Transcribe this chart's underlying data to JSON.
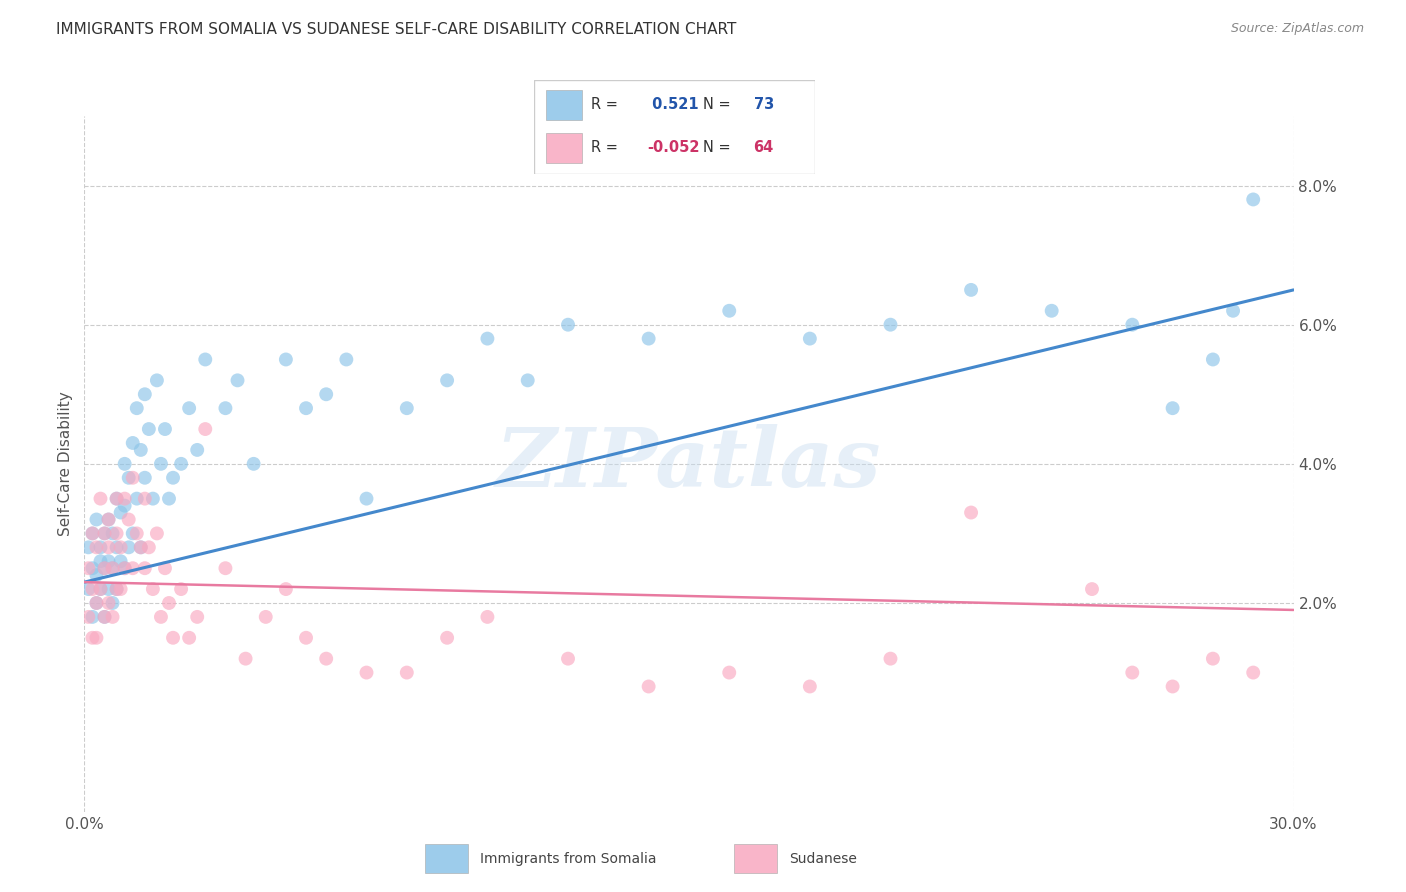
{
  "title": "IMMIGRANTS FROM SOMALIA VS SUDANESE SELF-CARE DISABILITY CORRELATION CHART",
  "source": "Source: ZipAtlas.com",
  "ylabel": "Self-Care Disability",
  "xlim": [
    0.0,
    0.3
  ],
  "ylim": [
    -0.01,
    0.09
  ],
  "ytick_vals": [
    0.02,
    0.04,
    0.06,
    0.08
  ],
  "ytick_labels": [
    "2.0%",
    "4.0%",
    "6.0%",
    "8.0%"
  ],
  "xtick_vals": [
    0.0,
    0.05,
    0.1,
    0.15,
    0.2,
    0.25,
    0.3
  ],
  "xtick_labels": [
    "0.0%",
    "",
    "",
    "",
    "",
    "",
    "30.0%"
  ],
  "r_somalia": 0.521,
  "n_somalia": 73,
  "r_sudanese": -0.052,
  "n_sudanese": 64,
  "blue_color": "#8cc4e8",
  "pink_color": "#f9a8c0",
  "line_blue": "#4488cc",
  "line_pink": "#e87aa0",
  "watermark": "ZIPatlas",
  "somalia_x": [
    0.001,
    0.001,
    0.002,
    0.002,
    0.002,
    0.003,
    0.003,
    0.003,
    0.004,
    0.004,
    0.004,
    0.005,
    0.005,
    0.005,
    0.006,
    0.006,
    0.006,
    0.007,
    0.007,
    0.007,
    0.008,
    0.008,
    0.008,
    0.009,
    0.009,
    0.01,
    0.01,
    0.01,
    0.011,
    0.011,
    0.012,
    0.012,
    0.013,
    0.013,
    0.014,
    0.014,
    0.015,
    0.015,
    0.016,
    0.017,
    0.018,
    0.019,
    0.02,
    0.021,
    0.022,
    0.024,
    0.026,
    0.028,
    0.03,
    0.035,
    0.038,
    0.042,
    0.05,
    0.055,
    0.06,
    0.065,
    0.07,
    0.08,
    0.09,
    0.1,
    0.11,
    0.12,
    0.14,
    0.16,
    0.18,
    0.2,
    0.22,
    0.24,
    0.26,
    0.27,
    0.28,
    0.285,
    0.29
  ],
  "somalia_y": [
    0.028,
    0.022,
    0.025,
    0.03,
    0.018,
    0.024,
    0.032,
    0.02,
    0.026,
    0.028,
    0.022,
    0.03,
    0.025,
    0.018,
    0.032,
    0.026,
    0.022,
    0.03,
    0.025,
    0.02,
    0.035,
    0.028,
    0.022,
    0.033,
    0.026,
    0.04,
    0.034,
    0.025,
    0.038,
    0.028,
    0.043,
    0.03,
    0.048,
    0.035,
    0.042,
    0.028,
    0.05,
    0.038,
    0.045,
    0.035,
    0.052,
    0.04,
    0.045,
    0.035,
    0.038,
    0.04,
    0.048,
    0.042,
    0.055,
    0.048,
    0.052,
    0.04,
    0.055,
    0.048,
    0.05,
    0.055,
    0.035,
    0.048,
    0.052,
    0.058,
    0.052,
    0.06,
    0.058,
    0.062,
    0.058,
    0.06,
    0.065,
    0.062,
    0.06,
    0.048,
    0.055,
    0.062,
    0.078
  ],
  "sudanese_x": [
    0.001,
    0.001,
    0.002,
    0.002,
    0.002,
    0.003,
    0.003,
    0.003,
    0.004,
    0.004,
    0.005,
    0.005,
    0.005,
    0.006,
    0.006,
    0.006,
    0.007,
    0.007,
    0.008,
    0.008,
    0.008,
    0.009,
    0.009,
    0.01,
    0.01,
    0.011,
    0.012,
    0.012,
    0.013,
    0.014,
    0.015,
    0.015,
    0.016,
    0.017,
    0.018,
    0.019,
    0.02,
    0.021,
    0.022,
    0.024,
    0.026,
    0.028,
    0.03,
    0.035,
    0.04,
    0.045,
    0.05,
    0.055,
    0.06,
    0.07,
    0.08,
    0.09,
    0.1,
    0.12,
    0.14,
    0.16,
    0.18,
    0.2,
    0.22,
    0.25,
    0.26,
    0.27,
    0.28,
    0.29
  ],
  "sudanese_y": [
    0.025,
    0.018,
    0.022,
    0.03,
    0.015,
    0.028,
    0.02,
    0.015,
    0.035,
    0.022,
    0.03,
    0.025,
    0.018,
    0.032,
    0.028,
    0.02,
    0.025,
    0.018,
    0.03,
    0.035,
    0.022,
    0.028,
    0.022,
    0.035,
    0.025,
    0.032,
    0.038,
    0.025,
    0.03,
    0.028,
    0.035,
    0.025,
    0.028,
    0.022,
    0.03,
    0.018,
    0.025,
    0.02,
    0.015,
    0.022,
    0.015,
    0.018,
    0.045,
    0.025,
    0.012,
    0.018,
    0.022,
    0.015,
    0.012,
    0.01,
    0.01,
    0.015,
    0.018,
    0.012,
    0.008,
    0.01,
    0.008,
    0.012,
    0.033,
    0.022,
    0.01,
    0.008,
    0.012,
    0.01
  ],
  "blue_line_x": [
    0.0,
    0.3
  ],
  "blue_line_y": [
    0.023,
    0.065
  ],
  "pink_line_x": [
    0.0,
    0.3
  ],
  "pink_line_y": [
    0.023,
    0.019
  ]
}
